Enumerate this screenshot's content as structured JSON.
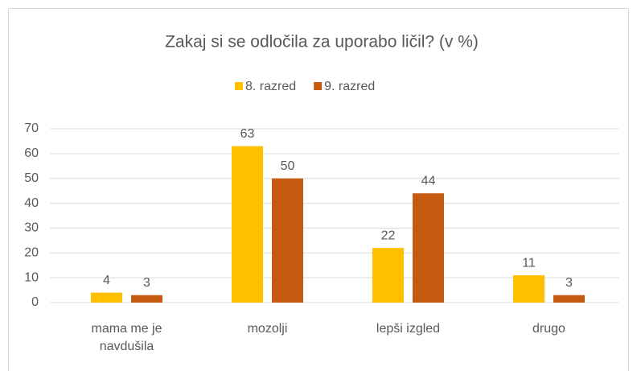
{
  "chart_data": {
    "type": "bar",
    "title": "Zakaj si se odločila za uporabo ličil? (v %)",
    "categories": [
      "mama me je navdušila",
      "mozolji",
      "lepši izgled",
      "drugo"
    ],
    "series": [
      {
        "name": "8. razred",
        "color": "#FFC000",
        "values": [
          4,
          63,
          22,
          11
        ]
      },
      {
        "name": "9. razred",
        "color": "#C55A11",
        "values": [
          3,
          50,
          44,
          3
        ]
      }
    ],
    "ylim": [
      0,
      70
    ],
    "yticks": [
      0,
      10,
      20,
      30,
      40,
      50,
      60,
      70
    ],
    "grid": true,
    "legend": "top"
  }
}
